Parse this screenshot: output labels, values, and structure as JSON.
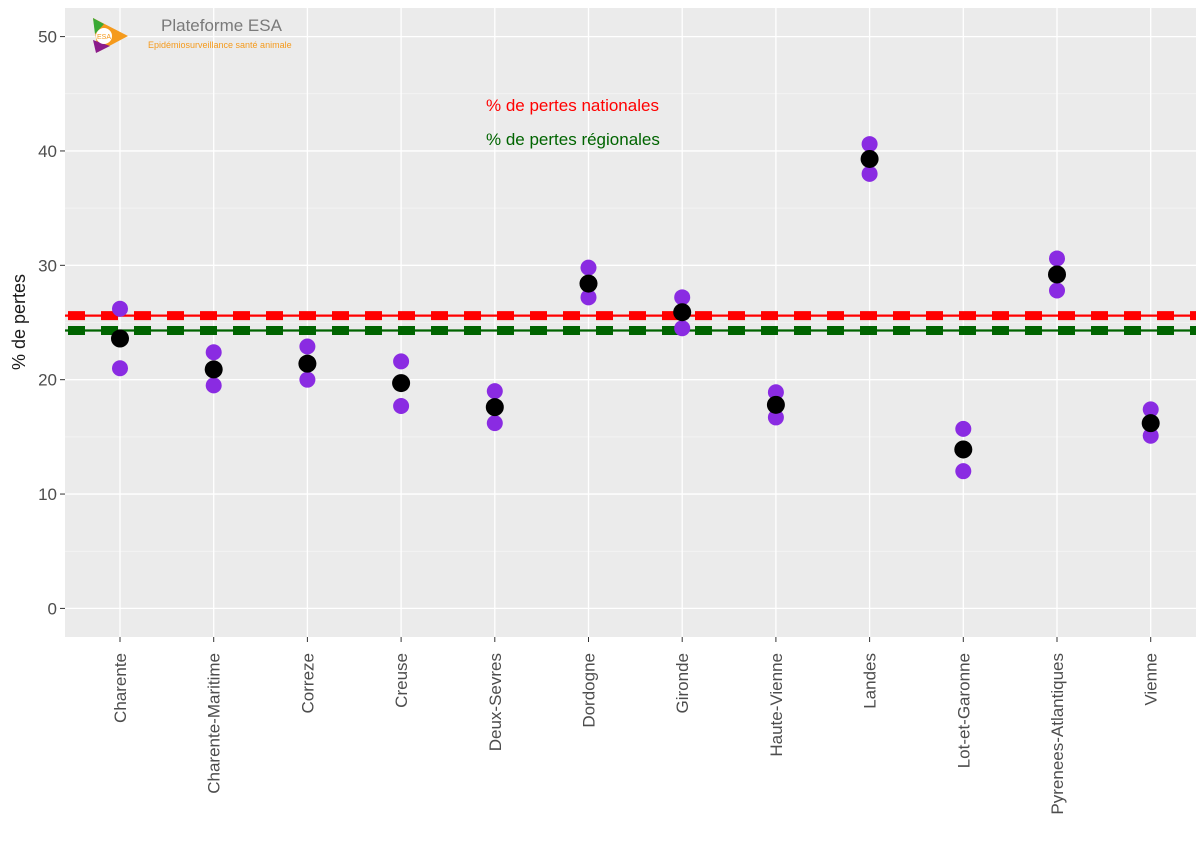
{
  "logo": {
    "name": "Plateforme ESA",
    "subtitle": "Epidémiosurveillance santé animale",
    "badge": "ESA"
  },
  "chart_data": {
    "type": "scatter",
    "ylabel": "% de pertes",
    "xlabel": "",
    "ylim": [
      -2.5,
      52.5
    ],
    "yticks": [
      0,
      10,
      20,
      30,
      40,
      50
    ],
    "grid": true,
    "categories": [
      "Charente",
      "Charente-Maritime",
      "Correze",
      "Creuse",
      "Deux-Sevres",
      "Dordogne",
      "Gironde",
      "Haute-Vienne",
      "Landes",
      "Lot-et-Garonne",
      "Pyrenees-Atlantiques",
      "Vienne"
    ],
    "series": [
      {
        "role": "upper",
        "color": "#8a2be2",
        "values": [
          26.2,
          22.4,
          22.9,
          21.6,
          19.0,
          29.8,
          27.2,
          18.9,
          40.6,
          15.7,
          30.6,
          17.4
        ]
      },
      {
        "role": "estimate",
        "color": "#000000",
        "values": [
          23.6,
          20.9,
          21.4,
          19.7,
          17.6,
          28.4,
          25.9,
          17.8,
          39.3,
          13.9,
          29.2,
          16.2
        ]
      },
      {
        "role": "lower",
        "color": "#8a2be2",
        "values": [
          21.0,
          19.5,
          20.0,
          17.7,
          16.2,
          27.2,
          24.5,
          16.7,
          38.0,
          12.0,
          27.8,
          15.1
        ]
      }
    ],
    "reference_lines": [
      {
        "label": "% de pertes nationales",
        "value": 25.6,
        "color": "#ff0000"
      },
      {
        "label": "% de pertes régionales",
        "value": 24.3,
        "color": "#006400"
      }
    ]
  }
}
